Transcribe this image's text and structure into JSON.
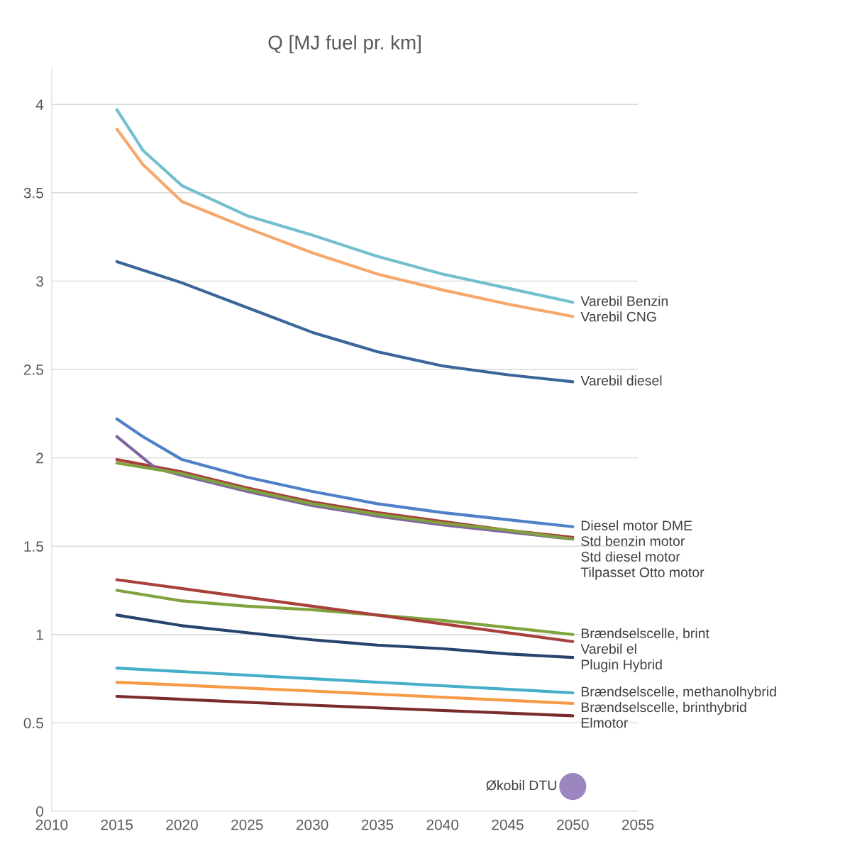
{
  "chart_data": {
    "type": "line",
    "title": "Q [MJ fuel pr. km]",
    "xlim": [
      2010,
      2055
    ],
    "xticks": [
      2010,
      2015,
      2020,
      2025,
      2030,
      2035,
      2040,
      2045,
      2050,
      2055
    ],
    "ylim": [
      0,
      4.2
    ],
    "yticks": [
      0,
      0.5,
      1,
      1.5,
      2,
      2.5,
      3,
      3.5,
      4
    ],
    "grid": "y",
    "legend": false,
    "marker": "none",
    "line_style": "solid",
    "series": [
      {
        "name": "Varebil Benzin",
        "color": "#72bfd0",
        "x": [
          2015,
          2017,
          2020,
          2025,
          2030,
          2035,
          2040,
          2045,
          2050
        ],
        "values": [
          3.97,
          3.74,
          3.54,
          3.37,
          3.26,
          3.14,
          3.04,
          2.96,
          2.88
        ]
      },
      {
        "name": "Varebil CNG",
        "color": "#f6a76c",
        "x": [
          2015,
          2017,
          2020,
          2025,
          2030,
          2035,
          2040,
          2045,
          2050
        ],
        "values": [
          3.86,
          3.66,
          3.45,
          3.3,
          3.16,
          3.04,
          2.95,
          2.87,
          2.8
        ]
      },
      {
        "name": "Varebil diesel",
        "color": "#3a6699",
        "x": [
          2015,
          2020,
          2025,
          2030,
          2035,
          2040,
          2045,
          2050
        ],
        "values": [
          3.11,
          2.99,
          2.85,
          2.71,
          2.6,
          2.52,
          2.47,
          2.43
        ]
      },
      {
        "name": "Diesel motor DME",
        "color": "#4f81c8",
        "x": [
          2015,
          2017,
          2020,
          2025,
          2030,
          2035,
          2040,
          2045,
          2050
        ],
        "values": [
          2.22,
          2.12,
          1.99,
          1.89,
          1.81,
          1.74,
          1.69,
          1.65,
          1.61
        ]
      },
      {
        "name": "Std benzin motor",
        "color": "#a8403c",
        "x": [
          2015,
          2020,
          2025,
          2030,
          2035,
          2040,
          2045,
          2050
        ],
        "values": [
          1.99,
          1.92,
          1.83,
          1.75,
          1.69,
          1.64,
          1.59,
          1.55
        ]
      },
      {
        "name": "Std diesel motor",
        "color": "#8064a2",
        "x": [
          2015,
          2017,
          2018,
          2020,
          2025,
          2030,
          2035,
          2040,
          2045,
          2050
        ],
        "values": [
          2.12,
          2.0,
          1.94,
          1.9,
          1.81,
          1.73,
          1.67,
          1.62,
          1.58,
          1.54
        ]
      },
      {
        "name": "Tilpasset Otto motor",
        "color": "#7fa33e",
        "x": [
          2015,
          2020,
          2025,
          2030,
          2035,
          2040,
          2045,
          2050
        ],
        "values": [
          1.97,
          1.91,
          1.82,
          1.74,
          1.68,
          1.63,
          1.59,
          1.54
        ]
      },
      {
        "name": "Brændselscelle, brint",
        "color": "#7fa33e",
        "x": [
          2015,
          2020,
          2025,
          2030,
          2035,
          2040,
          2045,
          2050
        ],
        "values": [
          1.25,
          1.19,
          1.16,
          1.14,
          1.11,
          1.08,
          1.04,
          1.0
        ]
      },
      {
        "name": "Varebil el",
        "color": "#a8403c",
        "x": [
          2015,
          2030,
          2050
        ],
        "values": [
          1.31,
          1.16,
          0.96
        ]
      },
      {
        "name": "Plugin Hybrid",
        "color": "#27446e",
        "x": [
          2015,
          2020,
          2025,
          2030,
          2035,
          2040,
          2045,
          2050
        ],
        "values": [
          1.11,
          1.05,
          1.01,
          0.97,
          0.94,
          0.92,
          0.89,
          0.87
        ]
      },
      {
        "name": "Brændselscelle, methanolhybrid",
        "color": "#45afc8",
        "x": [
          2015,
          2030,
          2050
        ],
        "values": [
          0.81,
          0.75,
          0.67
        ]
      },
      {
        "name": "Brændselscelle, brinthybrid",
        "color": "#f79a45",
        "x": [
          2015,
          2030,
          2050
        ],
        "values": [
          0.73,
          0.68,
          0.61
        ]
      },
      {
        "name": "Elmotor",
        "color": "#7a2c2c",
        "x": [
          2015,
          2030,
          2050
        ],
        "values": [
          0.65,
          0.6,
          0.54
        ]
      },
      {
        "name": "Økobil DTU",
        "type": "scatter",
        "marker": "circle",
        "color": "#9b86bf",
        "x": [
          2050
        ],
        "values": [
          0.14
        ]
      }
    ]
  }
}
